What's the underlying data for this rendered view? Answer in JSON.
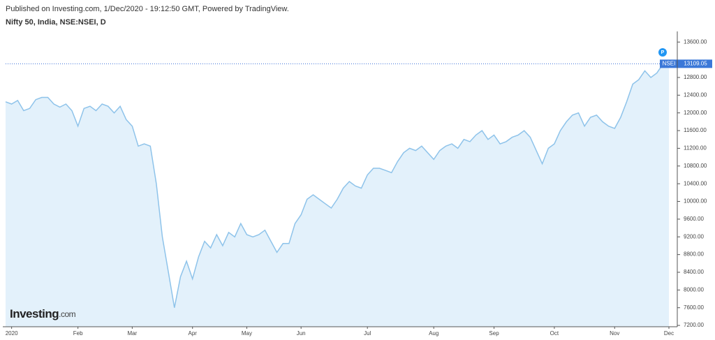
{
  "header": "Published on Investing.com, 1/Dec/2020 - 19:12:50 GMT, Powered by TradingView.",
  "logo": {
    "name": "Investing",
    "suffix": ".com"
  },
  "chart_data": {
    "type": "area",
    "title": "Nifty 50, India, NSE:NSEI, D",
    "marker": "P",
    "categories": [
      null,
      "2020",
      null,
      null,
      null,
      null,
      null,
      null,
      null,
      null,
      null,
      null,
      "Feb",
      null,
      null,
      null,
      null,
      null,
      null,
      null,
      null,
      "Mar",
      null,
      null,
      null,
      null,
      null,
      null,
      null,
      null,
      null,
      "Apr",
      null,
      null,
      null,
      null,
      null,
      null,
      null,
      null,
      "May",
      null,
      null,
      null,
      null,
      null,
      null,
      null,
      null,
      "Jun",
      null,
      null,
      null,
      null,
      null,
      null,
      null,
      null,
      null,
      null,
      "Jul",
      null,
      null,
      null,
      null,
      null,
      null,
      null,
      null,
      null,
      null,
      "Aug",
      null,
      null,
      null,
      null,
      null,
      null,
      null,
      null,
      null,
      "Sep",
      null,
      null,
      null,
      null,
      null,
      null,
      null,
      null,
      null,
      "Oct",
      null,
      null,
      null,
      null,
      null,
      null,
      null,
      null,
      null,
      "Nov",
      null,
      null,
      null,
      null,
      null,
      null,
      null,
      null,
      "Dec"
    ],
    "series": [
      {
        "name": "NSEI",
        "color": "#8ec3ea",
        "fill": "#e3f1fb",
        "values": [
          12250,
          12200,
          12280,
          12050,
          12100,
          12300,
          12350,
          12350,
          12200,
          12130,
          12200,
          12050,
          11700,
          12100,
          12150,
          12050,
          12200,
          12150,
          12000,
          12150,
          11850,
          11700,
          11250,
          11300,
          11250,
          10400,
          9200,
          8400,
          7600,
          8300,
          8650,
          8250,
          8750,
          9100,
          8950,
          9250,
          9000,
          9300,
          9200,
          9500,
          9250,
          9200,
          9250,
          9350,
          9100,
          8850,
          9050,
          9050,
          9500,
          9700,
          10050,
          10150,
          10050,
          9950,
          9850,
          10050,
          10300,
          10450,
          10350,
          10300,
          10600,
          10750,
          10750,
          10700,
          10650,
          10900,
          11100,
          11200,
          11150,
          11250,
          11100,
          10950,
          11150,
          11250,
          11300,
          11200,
          11400,
          11350,
          11500,
          11600,
          11400,
          11500,
          11300,
          11350,
          11450,
          11500,
          11600,
          11450,
          11150,
          10850,
          11200,
          11300,
          11600,
          11800,
          11950,
          12000,
          11700,
          11900,
          11950,
          11800,
          11700,
          11650,
          11900,
          12250,
          12650,
          12750,
          12950,
          12800,
          12900,
          13100,
          13109.05
        ]
      }
    ],
    "ylim": [
      7170,
      13840
    ],
    "yticks": [
      {
        "value": 7200,
        "label": "7200.00"
      },
      {
        "value": 7600,
        "label": "7600.00"
      },
      {
        "value": 8000,
        "label": "8000.00"
      },
      {
        "value": 8400,
        "label": "8400.00"
      },
      {
        "value": 8800,
        "label": "8800.00"
      },
      {
        "value": 9200,
        "label": "9200.00"
      },
      {
        "value": 9600,
        "label": "9600.00"
      },
      {
        "value": 10000,
        "label": "10000.00"
      },
      {
        "value": 10400,
        "label": "10400.00"
      },
      {
        "value": 10800,
        "label": "10800.00"
      },
      {
        "value": 11200,
        "label": "11200.00"
      },
      {
        "value": 11600,
        "label": "11600.00"
      },
      {
        "value": 12000,
        "label": "12000.00"
      },
      {
        "value": 12400,
        "label": "12400.00"
      },
      {
        "value": 12800,
        "label": "12800.00"
      },
      {
        "value": 13600,
        "label": "13600.00"
      }
    ],
    "grid": false
  }
}
